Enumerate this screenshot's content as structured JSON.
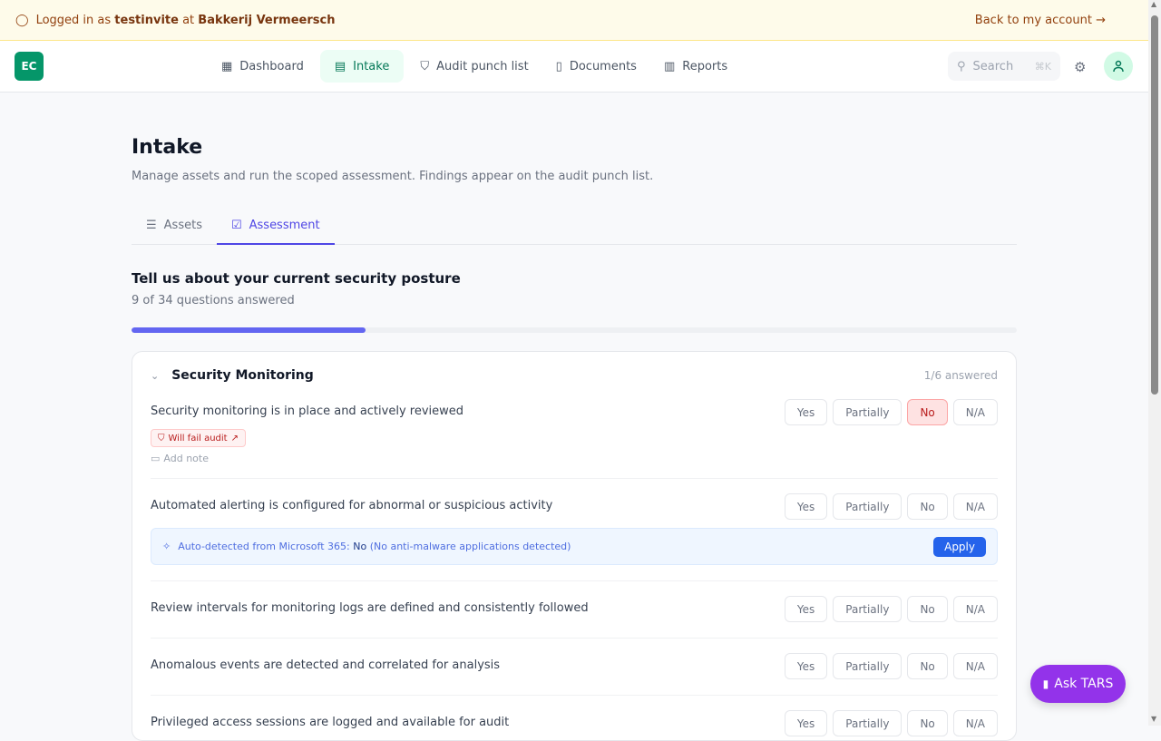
{
  "banner": {
    "prefix": "Logged in as",
    "user": "testinvite",
    "mid": "at",
    "org": "Bakkerij Vermeersch",
    "back": "Back to my account"
  },
  "header": {
    "logo": "EC",
    "nav": [
      {
        "label": "Dashboard",
        "icon": "grid-icon"
      },
      {
        "label": "Intake",
        "icon": "clipboard-icon",
        "active": true
      },
      {
        "label": "Audit punch list",
        "icon": "shield-check-icon"
      },
      {
        "label": "Documents",
        "icon": "book-icon"
      },
      {
        "label": "Reports",
        "icon": "report-icon"
      }
    ],
    "search_placeholder": "Search",
    "search_shortcut": "⌘K"
  },
  "page": {
    "title": "Intake",
    "subtitle": "Manage assets and run the scoped assessment. Findings appear on the audit punch list.",
    "tabs": [
      {
        "label": "Assets"
      },
      {
        "label": "Assessment",
        "active": true
      }
    ],
    "posture_title": "Tell us about your current security posture",
    "count": "9 of 34 questions answered",
    "answered": 9,
    "total": 34
  },
  "section": {
    "title": "Security Monitoring",
    "answered": "1/6 answered",
    "options": [
      "Yes",
      "Partially",
      "No",
      "N/A"
    ],
    "questions": [
      {
        "text": "Security monitoring is in place and actively reviewed",
        "selected": "No",
        "badge": "Will fail audit",
        "note": "Add note"
      },
      {
        "text": "Automated alerting is configured for abnormal or suspicious activity",
        "auto": {
          "prefix": "Auto-detected from Microsoft 365:",
          "value": "No",
          "detail": "(No anti-malware applications detected)",
          "apply": "Apply"
        }
      },
      {
        "text": "Review intervals for monitoring logs are defined and consistently followed"
      },
      {
        "text": "Anomalous events are detected and correlated for analysis"
      },
      {
        "text": "Privileged access sessions are logged and available for audit"
      }
    ]
  },
  "ask": "Ask TARS",
  "colors": {
    "accent": "#4f46e5",
    "brand": "#059669",
    "fail": "#b91c1c",
    "tars": "#9333ea"
  }
}
